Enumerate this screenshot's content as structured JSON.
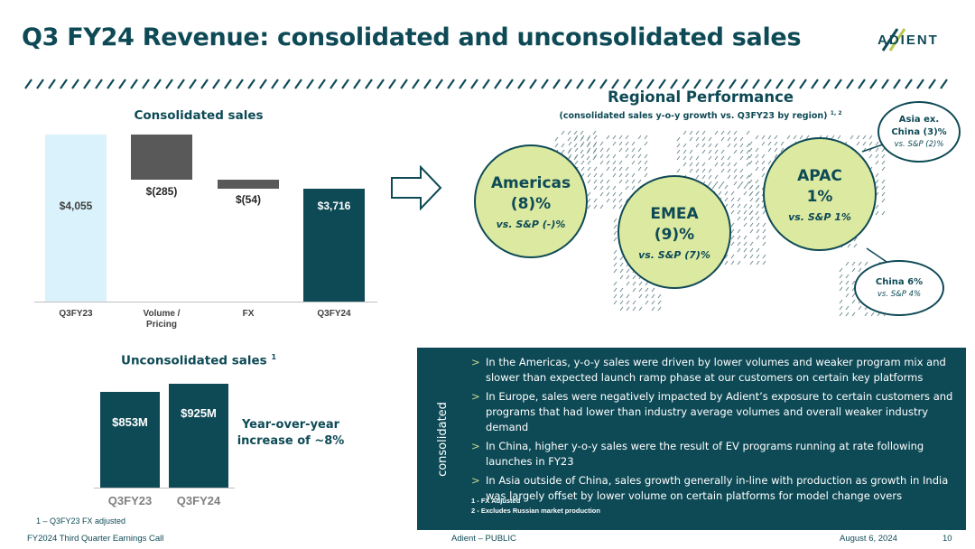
{
  "header": {
    "title": "Q3 FY24 Revenue: consolidated and unconsolidated sales",
    "logo_text": "ADIENT"
  },
  "consolidated": {
    "title": "Consolidated sales",
    "bars": [
      {
        "label": "$4,055",
        "category": "Q3FY23",
        "color": "#d9f2fb",
        "text_color": "#404040"
      },
      {
        "label": "$(285)",
        "category": "Volume / Pricing",
        "color": "#595959",
        "text_color": "#262626"
      },
      {
        "label": "$(54)",
        "category": "FX",
        "color": "#595959",
        "text_color": "#262626"
      },
      {
        "label": "$3,716",
        "category": "Q3FY24",
        "color": "#0e4a56",
        "text_color": "#ffffff"
      }
    ],
    "cat_line1": [
      "Q3FY23",
      "Volume /",
      "FX",
      "Q3FY24"
    ],
    "cat_line2": [
      "",
      "Pricing",
      "",
      ""
    ]
  },
  "chart_data": [
    {
      "type": "bar",
      "title": "Consolidated sales",
      "subtype": "waterfall",
      "categories": [
        "Q3FY23",
        "Volume / Pricing",
        "FX",
        "Q3FY24"
      ],
      "values": [
        4055,
        -285,
        -54,
        3716
      ],
      "value_labels": [
        "$4,055",
        "$(285)",
        "$(54)",
        "$3,716"
      ],
      "xlabel": "",
      "ylabel": ""
    },
    {
      "type": "bar",
      "title": "Unconsolidated sales 1",
      "categories": [
        "Q3FY23",
        "Q3FY24"
      ],
      "values": [
        853,
        925
      ],
      "value_labels": [
        "$853M",
        "$925M"
      ],
      "unit": "$M"
    }
  ],
  "unconsolidated": {
    "title": "Unconsolidated sales",
    "title_sup": "1",
    "bars": [
      {
        "label": "$853M",
        "category": "Q3FY23"
      },
      {
        "label": "$925M",
        "category": "Q3FY24"
      }
    ],
    "yoy_line1": "Year-over-year",
    "yoy_line2": "increase of ~8%",
    "footnote": "1 – Q3FY23 FX adjusted"
  },
  "regional": {
    "title": "Regional Performance",
    "subtitle": "(consolidated sales y-o-y growth vs. Q3FY23 by region)",
    "subtitle_sup": "1, 2",
    "americas": {
      "name": "Americas",
      "pct": "(8)%",
      "sp": "vs. S&P (-)%"
    },
    "emea": {
      "name": "EMEA",
      "pct": "(9)%",
      "sp": "vs. S&P (7)%"
    },
    "apac": {
      "name": "APAC",
      "pct": "1%",
      "sp": "vs. S&P 1%"
    },
    "asia_ex_china": {
      "line1": "Asia ex.",
      "line2": "China (3)%",
      "sp": "vs. S&P (2)%"
    },
    "china": {
      "line1": "China 6%",
      "sp": "vs. S&P 4%"
    }
  },
  "panel": {
    "side_label": "consolidated",
    "bullets": [
      "In the Americas, y-o-y sales were driven by lower volumes and weaker program mix and slower than expected launch ramp phase at our customers on certain key platforms",
      "In Europe, sales were negatively impacted by Adient’s exposure to certain customers and programs that had lower than industry average volumes and overall weaker industry demand",
      "In China, higher y-o-y sales were the result of EV programs running at rate following launches in FY23",
      "In Asia outside of China, sales growth generally in-line with production as growth in India was largely offset by lower volume on certain platforms for model change overs"
    ],
    "chevron": ">",
    "note1": "1 - FX Adjusted",
    "note2": "2 - Excludes Russian market production"
  },
  "footer": {
    "left": "FY2024 Third Quarter Earnings Call",
    "center": "Adient – PUBLIC",
    "date": "August 6, 2024",
    "page": "10"
  }
}
